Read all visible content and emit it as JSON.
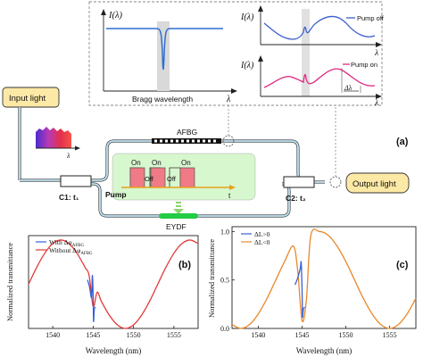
{
  "panel_a": {
    "label": "(a)",
    "input_light": "Input light",
    "output_light": "Output light",
    "afbg": "AFBG",
    "eydf": "EYDF",
    "pump": "Pump",
    "t_axis": "t",
    "c1": "C1: t₁",
    "c2": "C2: t₂",
    "on": "On",
    "off": "Off",
    "lambda": "λ",
    "i_lambda": "I(λ)",
    "bragg_wavelength": "Bragg wavelength",
    "pump_off": "Pump off",
    "pump_on": "Pump on",
    "delta_lambda": "Δλ",
    "colors": {
      "spectrum_blue": "#2f6fcf",
      "spectrum_magenta": "#e0267f",
      "pump_box": "#f07a86",
      "eydf_green": "#22cc44",
      "input_fill": "#fde9a6",
      "pump_panel": "#d7f7cf"
    }
  },
  "chart_data": [
    {
      "type": "line",
      "panel": "(b)",
      "xlabel": "Wavelength (nm)",
      "ylabel": "Normalized transmittance",
      "xlim": [
        1537,
        1558
      ],
      "ylim": [
        0,
        1.05
      ],
      "xticks": [
        1540,
        1545,
        1550,
        1555
      ],
      "yticks": [],
      "legend": "top-left",
      "series": [
        {
          "name": "With Δφ_AFBG",
          "color": "#3a5fd9",
          "x": [
            1544.3,
            1544.55,
            1544.8,
            1544.9,
            1545.0,
            1545.05,
            1545.15,
            1545.3
          ],
          "y": [
            0.55,
            0.47,
            0.35,
            0.6,
            0.38,
            0.08,
            0.22,
            0.24
          ]
        },
        {
          "name": "Without Δφ_AFBG",
          "color": "#e23a3a",
          "x": [
            1537.0,
            1538.0,
            1539.0,
            1540.0,
            1541.0,
            1542.0,
            1543.0,
            1544.0,
            1544.5,
            1545.0,
            1545.5,
            1546.0,
            1547.0,
            1548.0,
            1549.0,
            1550.0,
            1551.0,
            1552.0,
            1553.0,
            1554.0,
            1555.0,
            1556.0,
            1557.0,
            1558.0
          ],
          "y": [
            0.5,
            0.69,
            0.85,
            0.96,
            1.0,
            0.96,
            0.85,
            0.69,
            0.6,
            0.25,
            0.41,
            0.31,
            0.15,
            0.04,
            0.0,
            0.04,
            0.15,
            0.31,
            0.5,
            0.69,
            0.85,
            0.96,
            1.0,
            0.96
          ]
        }
      ]
    },
    {
      "type": "line",
      "panel": "(c)",
      "xlabel": "Wavelength (nm)",
      "ylabel": "Normalized transmittance",
      "xlim": [
        1537,
        1558
      ],
      "ylim": [
        0,
        1.05
      ],
      "xticks": [
        1540,
        1545,
        1550,
        1555
      ],
      "yticks": [
        0.0,
        0.5,
        1.0
      ],
      "legend": "top-left",
      "series": [
        {
          "name": "ΔL>0",
          "color": "#3a5fd9",
          "x": [
            1544.2,
            1544.5,
            1544.8,
            1544.9,
            1545.0,
            1545.05,
            1545.15,
            1545.3
          ],
          "y": [
            0.45,
            0.52,
            0.62,
            0.68,
            0.4,
            0.12,
            0.2,
            0.22
          ]
        },
        {
          "name": "ΔL<0",
          "color": "#e8892b",
          "x": [
            1537.0,
            1538.0,
            1539.0,
            1540.0,
            1541.0,
            1542.0,
            1543.0,
            1544.0,
            1544.5,
            1545.0,
            1545.5,
            1546.0,
            1547.0,
            1548.0,
            1549.0,
            1550.0,
            1551.0,
            1552.0,
            1553.0,
            1554.0,
            1555.0,
            1556.0,
            1557.0,
            1558.0
          ],
          "y": [
            0.04,
            0.0,
            0.04,
            0.15,
            0.31,
            0.5,
            0.69,
            0.85,
            0.6,
            0.08,
            0.3,
            0.96,
            1.0,
            0.96,
            0.85,
            0.69,
            0.5,
            0.31,
            0.15,
            0.04,
            0.0,
            0.04,
            0.15,
            0.31
          ]
        }
      ]
    }
  ]
}
